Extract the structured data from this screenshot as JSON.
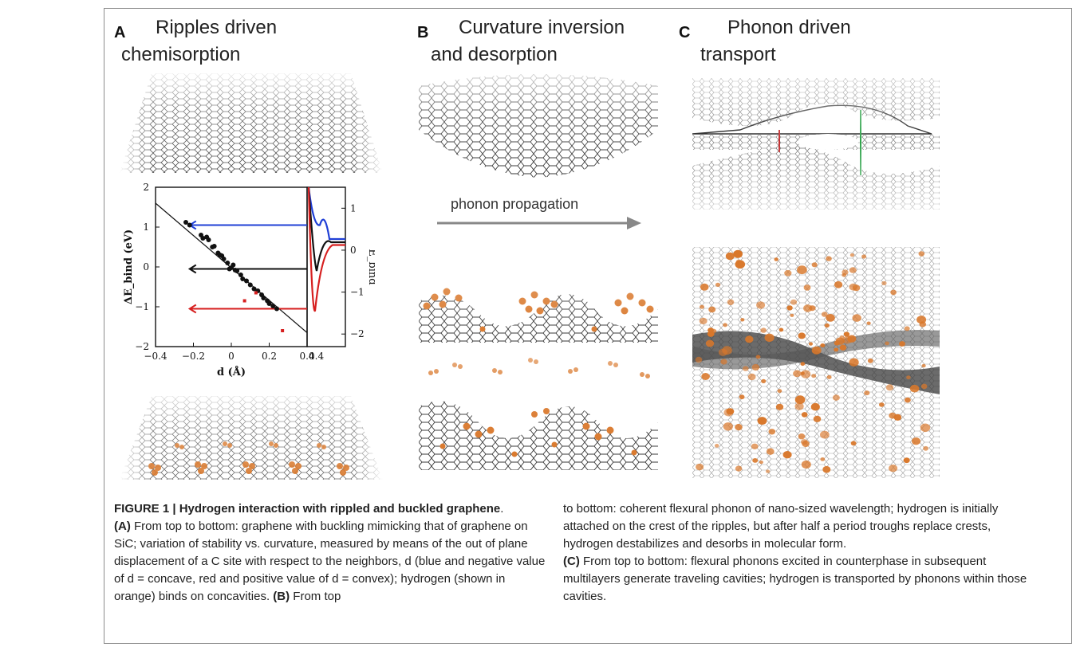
{
  "panels": {
    "a": {
      "letter": "A",
      "title_line1": "Ripples driven",
      "title_line2": "chemisorption"
    },
    "b": {
      "letter": "B",
      "title_line1": "Curvature inversion",
      "title_line2": "and desorption"
    },
    "c": {
      "letter": "C",
      "title_line1": "Phonon driven",
      "title_line2": "transport"
    }
  },
  "arrow_label": "phonon propagation",
  "chart_data": {
    "type": "scatter",
    "xlabel": "d (Å)",
    "ylabel": "ΔE_bind (eV)",
    "right_ylabel": "E_bind",
    "xlim": [
      -0.4,
      0.4
    ],
    "ylim": [
      -2,
      2
    ],
    "right_ylim": [
      -2.3,
      1.5
    ],
    "x_ticks": [
      "-0.4",
      "-0.2",
      "0",
      "0.2",
      "0.4"
    ],
    "y_ticks": [
      "-2",
      "-1",
      "0",
      "1",
      "2"
    ],
    "right_ticks": [
      "-2",
      "-1",
      "0",
      "1"
    ],
    "inset_x_tick": "0.4",
    "fit_line": {
      "x": [
        -0.4,
        0.4
      ],
      "y": [
        1.6,
        -1.65
      ]
    },
    "black_points": [
      {
        "x": -0.24,
        "y": 1.12
      },
      {
        "x": -0.22,
        "y": 1.05
      },
      {
        "x": -0.16,
        "y": 0.8
      },
      {
        "x": -0.15,
        "y": 0.72
      },
      {
        "x": -0.13,
        "y": 0.75
      },
      {
        "x": -0.12,
        "y": 0.68
      },
      {
        "x": -0.1,
        "y": 0.5
      },
      {
        "x": -0.09,
        "y": 0.52
      },
      {
        "x": -0.07,
        "y": 0.35
      },
      {
        "x": -0.06,
        "y": 0.3
      },
      {
        "x": -0.05,
        "y": 0.28
      },
      {
        "x": -0.04,
        "y": 0.2
      },
      {
        "x": -0.02,
        "y": 0.1
      },
      {
        "x": -0.01,
        "y": -0.05
      },
      {
        "x": 0.0,
        "y": -0.02
      },
      {
        "x": 0.01,
        "y": 0.05
      },
      {
        "x": 0.02,
        "y": -0.08
      },
      {
        "x": 0.03,
        "y": -0.1
      },
      {
        "x": 0.05,
        "y": -0.2
      },
      {
        "x": 0.06,
        "y": -0.3
      },
      {
        "x": 0.08,
        "y": -0.35
      },
      {
        "x": 0.1,
        "y": -0.45
      },
      {
        "x": 0.12,
        "y": -0.55
      },
      {
        "x": 0.14,
        "y": -0.6
      },
      {
        "x": 0.16,
        "y": -0.7
      },
      {
        "x": 0.17,
        "y": -0.78
      },
      {
        "x": 0.19,
        "y": -0.85
      },
      {
        "x": 0.2,
        "y": -0.92
      },
      {
        "x": 0.22,
        "y": -0.98
      },
      {
        "x": 0.24,
        "y": -1.05
      }
    ],
    "red_points": [
      {
        "x": 0.07,
        "y": -0.85
      },
      {
        "x": 0.13,
        "y": -0.65
      },
      {
        "x": 0.27,
        "y": -1.6
      }
    ],
    "arrows": [
      {
        "color": "#1f3fd6",
        "y": 1.05
      },
      {
        "color": "#111111",
        "y": -0.05
      },
      {
        "color": "#d61f1f",
        "y": -1.05
      }
    ]
  },
  "caption": {
    "figure_label": "FIGURE 1 | Hydrogen interaction with rippled and buckled graphene",
    "label_a": "(A)",
    "text_a": "From top to bottom: graphene with buckling mimicking that of graphene on SiC; variation of stability vs. curvature, measured by means of the out of plane displacement of a C site with respect to the neighbors, d (blue and negative value of d = concave, red and positive value of d = convex); hydrogen (shown in orange) binds on concavities.",
    "label_b": "(B)",
    "text_b": "From top to bottom: coherent flexural phonon of nano-sized wavelength; hydrogen is initially attached on the crest of the ripples, but after half a period troughs replace crests, hydrogen destabilizes and desorbs in molecular form.",
    "label_c": "(C)",
    "text_c": "From top to bottom: flexural phonons excited in counterphase in subsequent multilayers generate traveling cavities; hydrogen is transported by phonons within those cavities."
  },
  "colors": {
    "hydrogen": "#d9772a",
    "lattice": "#555555",
    "blue": "#1f3fd6",
    "red": "#d61f1f"
  }
}
